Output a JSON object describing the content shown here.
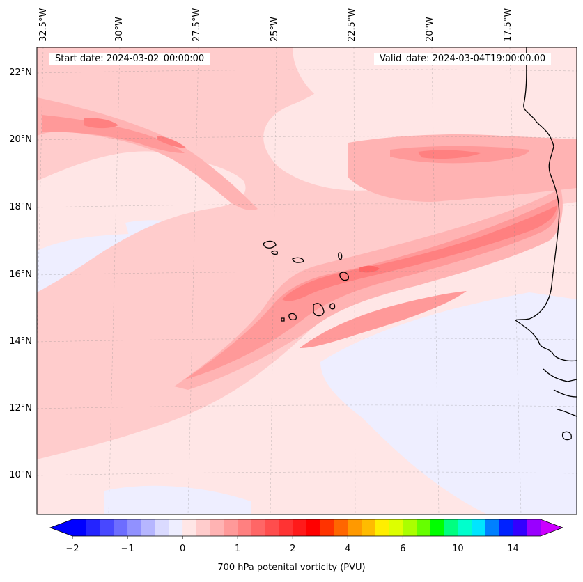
{
  "map": {
    "longitude_labels": [
      "32.5°W",
      "30°W",
      "27.5°W",
      "25°W",
      "22.5°W",
      "20°W",
      "17.5°W"
    ],
    "latitude_labels": [
      "22°N",
      "20°N",
      "18°N",
      "16°N",
      "14°N",
      "12°N",
      "10°N"
    ],
    "start_label": "Start date: 2024-03-02_00:00:00",
    "valid_label": "Valid_date: 2024-03-04T19:00:00.00"
  },
  "colorbar": {
    "title": "700 hPa potenital vorticity (PVU)",
    "tick_labels": [
      "−2",
      "−1",
      "0",
      "1",
      "2",
      "4",
      "6",
      "10",
      "14"
    ],
    "tick_values": [
      -2,
      -1,
      0,
      1,
      2,
      4,
      6,
      10,
      14
    ],
    "colors": [
      "#0000ff",
      "#2424ff",
      "#4848ff",
      "#6d6dff",
      "#9191ff",
      "#b6b6ff",
      "#dadaff",
      "#eeeeff",
      "#ffe6e6",
      "#ffcccc",
      "#ffb3b3",
      "#ff9999",
      "#ff8080",
      "#ff6666",
      "#ff4d4d",
      "#ff3333",
      "#ff1a1a",
      "#ff0000",
      "#ff3300",
      "#ff6600",
      "#ff9900",
      "#ffbb00",
      "#ffee00",
      "#ddff00",
      "#aaff00",
      "#66ff00",
      "#00ff00",
      "#00ff80",
      "#00ffcc",
      "#00e5ff",
      "#0080ff",
      "#0022ff",
      "#3300ff",
      "#9900ff"
    ],
    "under_color": "#0000ff",
    "over_color": "#cc00ff"
  }
}
